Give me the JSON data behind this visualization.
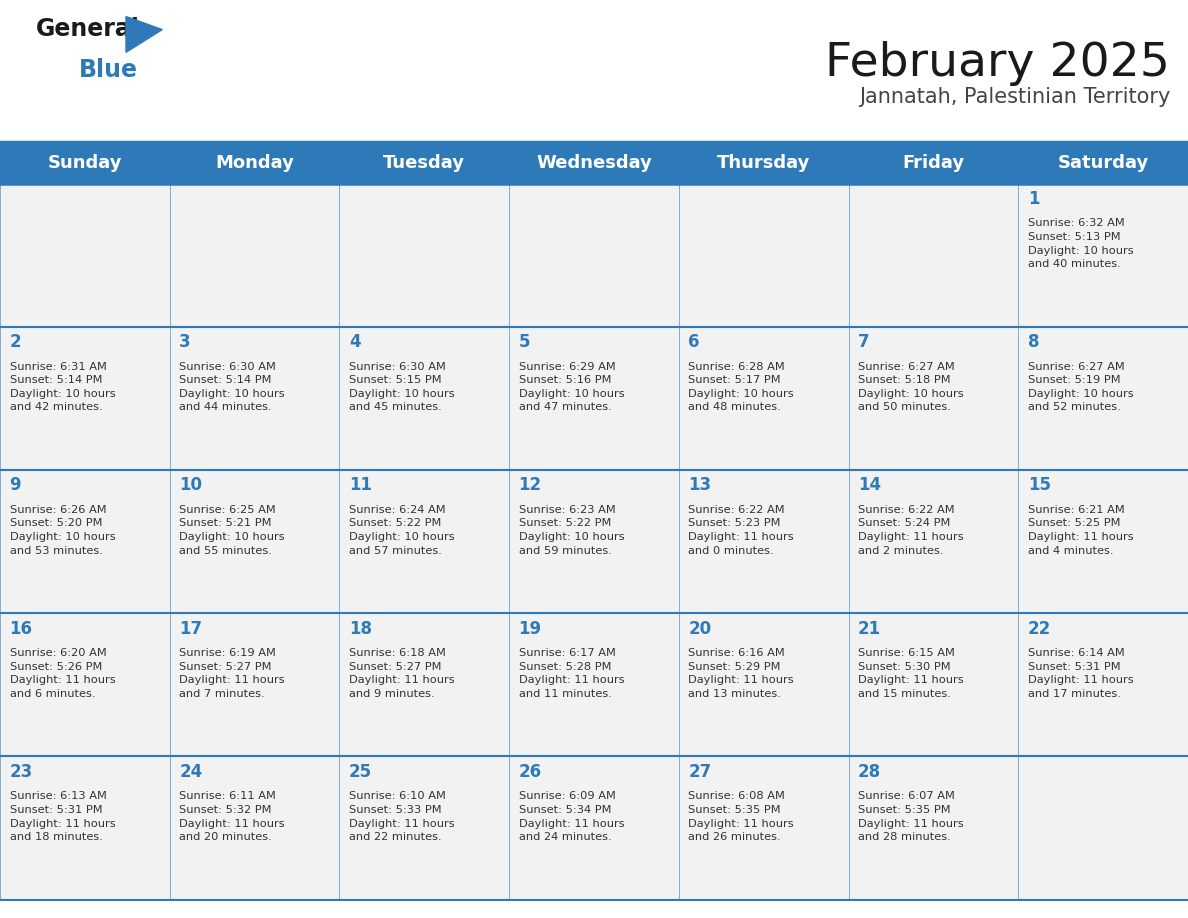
{
  "title": "February 2025",
  "subtitle": "Jannatah, Palestinian Territory",
  "header_color": "#2E7AB8",
  "header_text_color": "#FFFFFF",
  "cell_bg_color": "#F2F2F2",
  "day_text_color": "#2E7AB8",
  "info_text_color": "#333333",
  "border_color": "#2E7AB8",
  "days_of_week": [
    "Sunday",
    "Monday",
    "Tuesday",
    "Wednesday",
    "Thursday",
    "Friday",
    "Saturday"
  ],
  "weeks": [
    [
      {
        "day": null,
        "info": null
      },
      {
        "day": null,
        "info": null
      },
      {
        "day": null,
        "info": null
      },
      {
        "day": null,
        "info": null
      },
      {
        "day": null,
        "info": null
      },
      {
        "day": null,
        "info": null
      },
      {
        "day": 1,
        "info": "Sunrise: 6:32 AM\nSunset: 5:13 PM\nDaylight: 10 hours\nand 40 minutes."
      }
    ],
    [
      {
        "day": 2,
        "info": "Sunrise: 6:31 AM\nSunset: 5:14 PM\nDaylight: 10 hours\nand 42 minutes."
      },
      {
        "day": 3,
        "info": "Sunrise: 6:30 AM\nSunset: 5:14 PM\nDaylight: 10 hours\nand 44 minutes."
      },
      {
        "day": 4,
        "info": "Sunrise: 6:30 AM\nSunset: 5:15 PM\nDaylight: 10 hours\nand 45 minutes."
      },
      {
        "day": 5,
        "info": "Sunrise: 6:29 AM\nSunset: 5:16 PM\nDaylight: 10 hours\nand 47 minutes."
      },
      {
        "day": 6,
        "info": "Sunrise: 6:28 AM\nSunset: 5:17 PM\nDaylight: 10 hours\nand 48 minutes."
      },
      {
        "day": 7,
        "info": "Sunrise: 6:27 AM\nSunset: 5:18 PM\nDaylight: 10 hours\nand 50 minutes."
      },
      {
        "day": 8,
        "info": "Sunrise: 6:27 AM\nSunset: 5:19 PM\nDaylight: 10 hours\nand 52 minutes."
      }
    ],
    [
      {
        "day": 9,
        "info": "Sunrise: 6:26 AM\nSunset: 5:20 PM\nDaylight: 10 hours\nand 53 minutes."
      },
      {
        "day": 10,
        "info": "Sunrise: 6:25 AM\nSunset: 5:21 PM\nDaylight: 10 hours\nand 55 minutes."
      },
      {
        "day": 11,
        "info": "Sunrise: 6:24 AM\nSunset: 5:22 PM\nDaylight: 10 hours\nand 57 minutes."
      },
      {
        "day": 12,
        "info": "Sunrise: 6:23 AM\nSunset: 5:22 PM\nDaylight: 10 hours\nand 59 minutes."
      },
      {
        "day": 13,
        "info": "Sunrise: 6:22 AM\nSunset: 5:23 PM\nDaylight: 11 hours\nand 0 minutes."
      },
      {
        "day": 14,
        "info": "Sunrise: 6:22 AM\nSunset: 5:24 PM\nDaylight: 11 hours\nand 2 minutes."
      },
      {
        "day": 15,
        "info": "Sunrise: 6:21 AM\nSunset: 5:25 PM\nDaylight: 11 hours\nand 4 minutes."
      }
    ],
    [
      {
        "day": 16,
        "info": "Sunrise: 6:20 AM\nSunset: 5:26 PM\nDaylight: 11 hours\nand 6 minutes."
      },
      {
        "day": 17,
        "info": "Sunrise: 6:19 AM\nSunset: 5:27 PM\nDaylight: 11 hours\nand 7 minutes."
      },
      {
        "day": 18,
        "info": "Sunrise: 6:18 AM\nSunset: 5:27 PM\nDaylight: 11 hours\nand 9 minutes."
      },
      {
        "day": 19,
        "info": "Sunrise: 6:17 AM\nSunset: 5:28 PM\nDaylight: 11 hours\nand 11 minutes."
      },
      {
        "day": 20,
        "info": "Sunrise: 6:16 AM\nSunset: 5:29 PM\nDaylight: 11 hours\nand 13 minutes."
      },
      {
        "day": 21,
        "info": "Sunrise: 6:15 AM\nSunset: 5:30 PM\nDaylight: 11 hours\nand 15 minutes."
      },
      {
        "day": 22,
        "info": "Sunrise: 6:14 AM\nSunset: 5:31 PM\nDaylight: 11 hours\nand 17 minutes."
      }
    ],
    [
      {
        "day": 23,
        "info": "Sunrise: 6:13 AM\nSunset: 5:31 PM\nDaylight: 11 hours\nand 18 minutes."
      },
      {
        "day": 24,
        "info": "Sunrise: 6:11 AM\nSunset: 5:32 PM\nDaylight: 11 hours\nand 20 minutes."
      },
      {
        "day": 25,
        "info": "Sunrise: 6:10 AM\nSunset: 5:33 PM\nDaylight: 11 hours\nand 22 minutes."
      },
      {
        "day": 26,
        "info": "Sunrise: 6:09 AM\nSunset: 5:34 PM\nDaylight: 11 hours\nand 24 minutes."
      },
      {
        "day": 27,
        "info": "Sunrise: 6:08 AM\nSunset: 5:35 PM\nDaylight: 11 hours\nand 26 minutes."
      },
      {
        "day": 28,
        "info": "Sunrise: 6:07 AM\nSunset: 5:35 PM\nDaylight: 11 hours\nand 28 minutes."
      },
      {
        "day": null,
        "info": null
      }
    ]
  ]
}
